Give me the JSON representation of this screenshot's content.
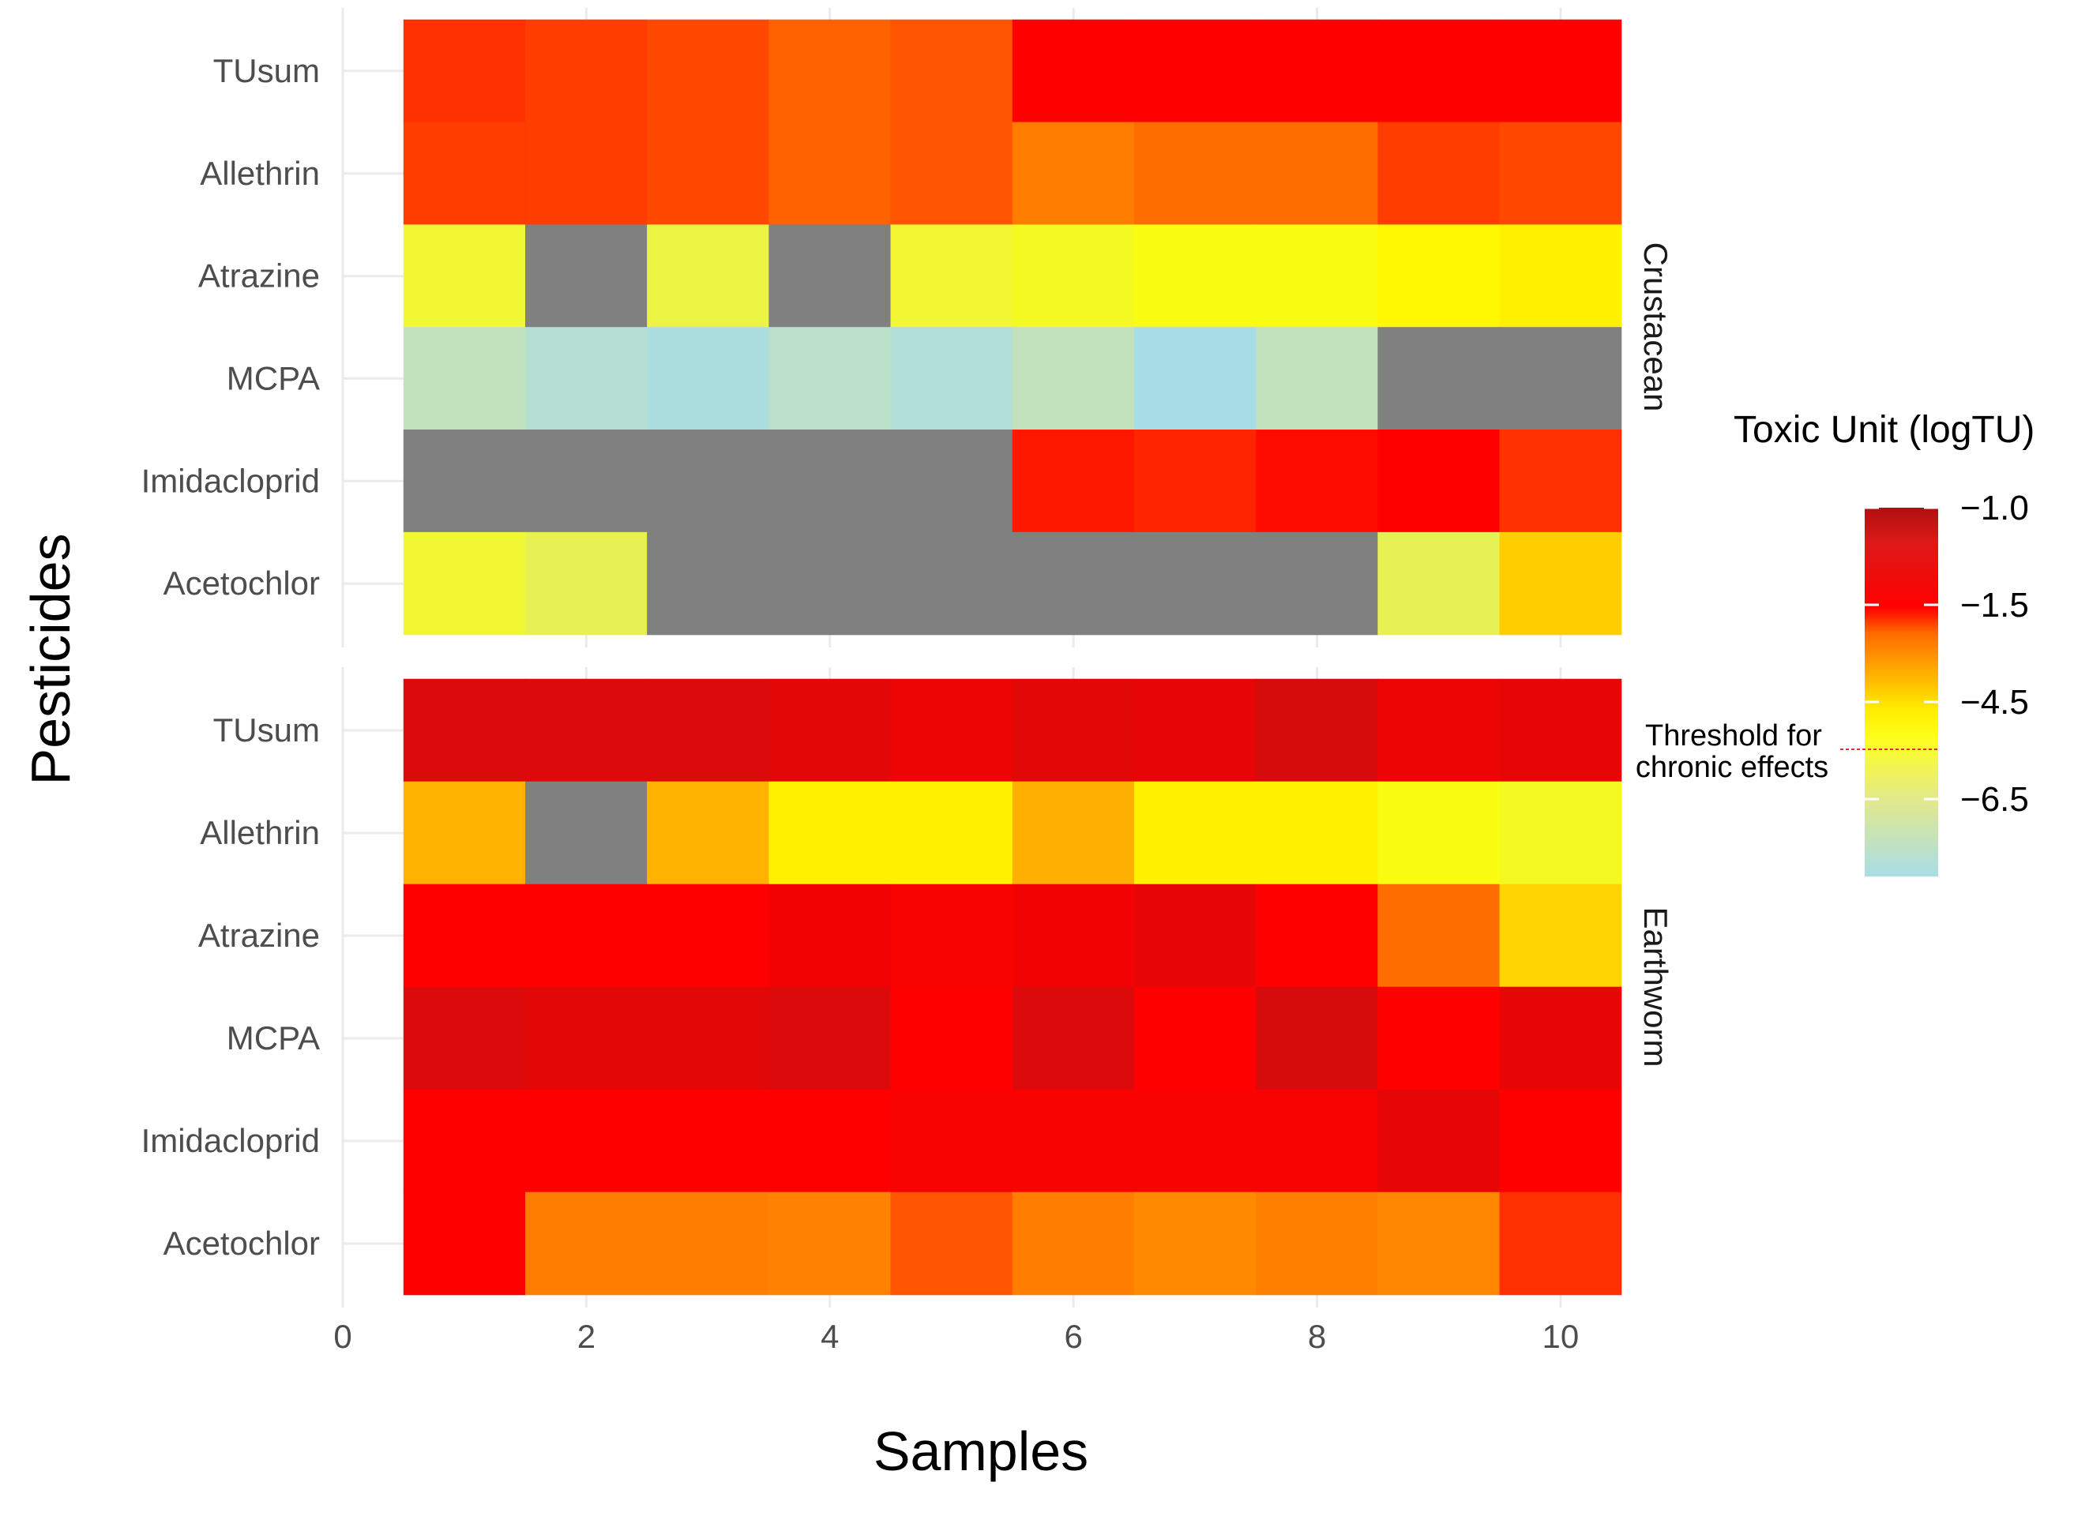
{
  "chart_data": {
    "type": "heatmap",
    "xlabel": "Samples",
    "ylabel": "Pesticides",
    "xlim": [
      0,
      10.5
    ],
    "x_ticks": [
      0,
      2,
      4,
      6,
      8,
      10
    ],
    "x_tick_labels": [
      "0",
      "2",
      "4",
      "6",
      "8",
      "10"
    ],
    "samples": [
      1,
      2,
      3,
      4,
      5,
      6,
      7,
      8,
      9,
      10
    ],
    "rows": [
      "TUsum",
      "Allethrin",
      "Atrazine",
      "MCPA",
      "Imidacloprid",
      "Acetochlor"
    ],
    "na_color": "#808080",
    "panels": [
      {
        "strip_label": "Crustacean",
        "values": [
          [
            -1.9,
            -2.0,
            -2.1,
            -2.3,
            -2.2,
            -1.5,
            -1.5,
            -1.5,
            -1.5,
            -1.5
          ],
          [
            -2.0,
            -2.0,
            -2.1,
            -2.3,
            -2.2,
            -2.6,
            -2.4,
            -2.4,
            -2.0,
            -2.1
          ],
          [
            -5.8,
            null,
            -5.9,
            null,
            -5.8,
            -5.7,
            -5.6,
            -5.6,
            -5.4,
            -5.3
          ],
          [
            -7.0,
            -7.5,
            -7.8,
            -7.3,
            -7.6,
            -7.0,
            -8.0,
            -7.0,
            null,
            null
          ],
          [
            null,
            null,
            null,
            null,
            null,
            -1.7,
            -1.8,
            -1.6,
            -1.5,
            -1.9
          ],
          [
            -5.8,
            -6.0,
            null,
            null,
            null,
            null,
            null,
            null,
            -6.0,
            -4.8
          ]
        ]
      },
      {
        "strip_label": "Earthworm",
        "values": [
          [
            -1.2,
            -1.2,
            -1.2,
            -1.25,
            -1.35,
            -1.25,
            -1.3,
            -1.15,
            -1.35,
            -1.3
          ],
          [
            -4.3,
            null,
            -4.3,
            -5.3,
            -5.3,
            -4.2,
            -5.3,
            -5.3,
            -5.6,
            -5.7
          ],
          [
            -1.5,
            -1.5,
            -1.5,
            -1.4,
            -1.45,
            -1.4,
            -1.3,
            -1.5,
            -2.4,
            -4.9
          ],
          [
            -1.2,
            -1.25,
            -1.25,
            -1.2,
            -1.5,
            -1.2,
            -1.5,
            -1.15,
            -1.5,
            -1.3
          ],
          [
            -1.5,
            -1.5,
            -1.5,
            -1.5,
            -1.45,
            -1.45,
            -1.45,
            -1.45,
            -1.3,
            -1.5
          ],
          [
            -1.5,
            -2.6,
            -2.6,
            -2.8,
            -2.2,
            -2.6,
            -3.0,
            -2.7,
            -2.9,
            -1.9
          ]
        ]
      }
    ],
    "legend": {
      "title": "Toxic Unit (logTU)",
      "breaks": [
        -1.0,
        -1.5,
        -4.5,
        -6.5
      ],
      "break_labels": [
        "−1.0",
        "−1.5",
        "−4.5",
        "−6.5"
      ],
      "threshold_label_line1": "Threshold for",
      "threshold_label_line2": "chronic effects",
      "threshold_value": -5.6
    },
    "colors": {
      "darkred": "#c41010",
      "red": "#ff0000",
      "orange": "#ff7a00",
      "yellow": "#ffff00",
      "lightgreen": "#cfe3a8",
      "lightblue": "#a8dde8",
      "threshold_line": "#e8293d"
    }
  }
}
